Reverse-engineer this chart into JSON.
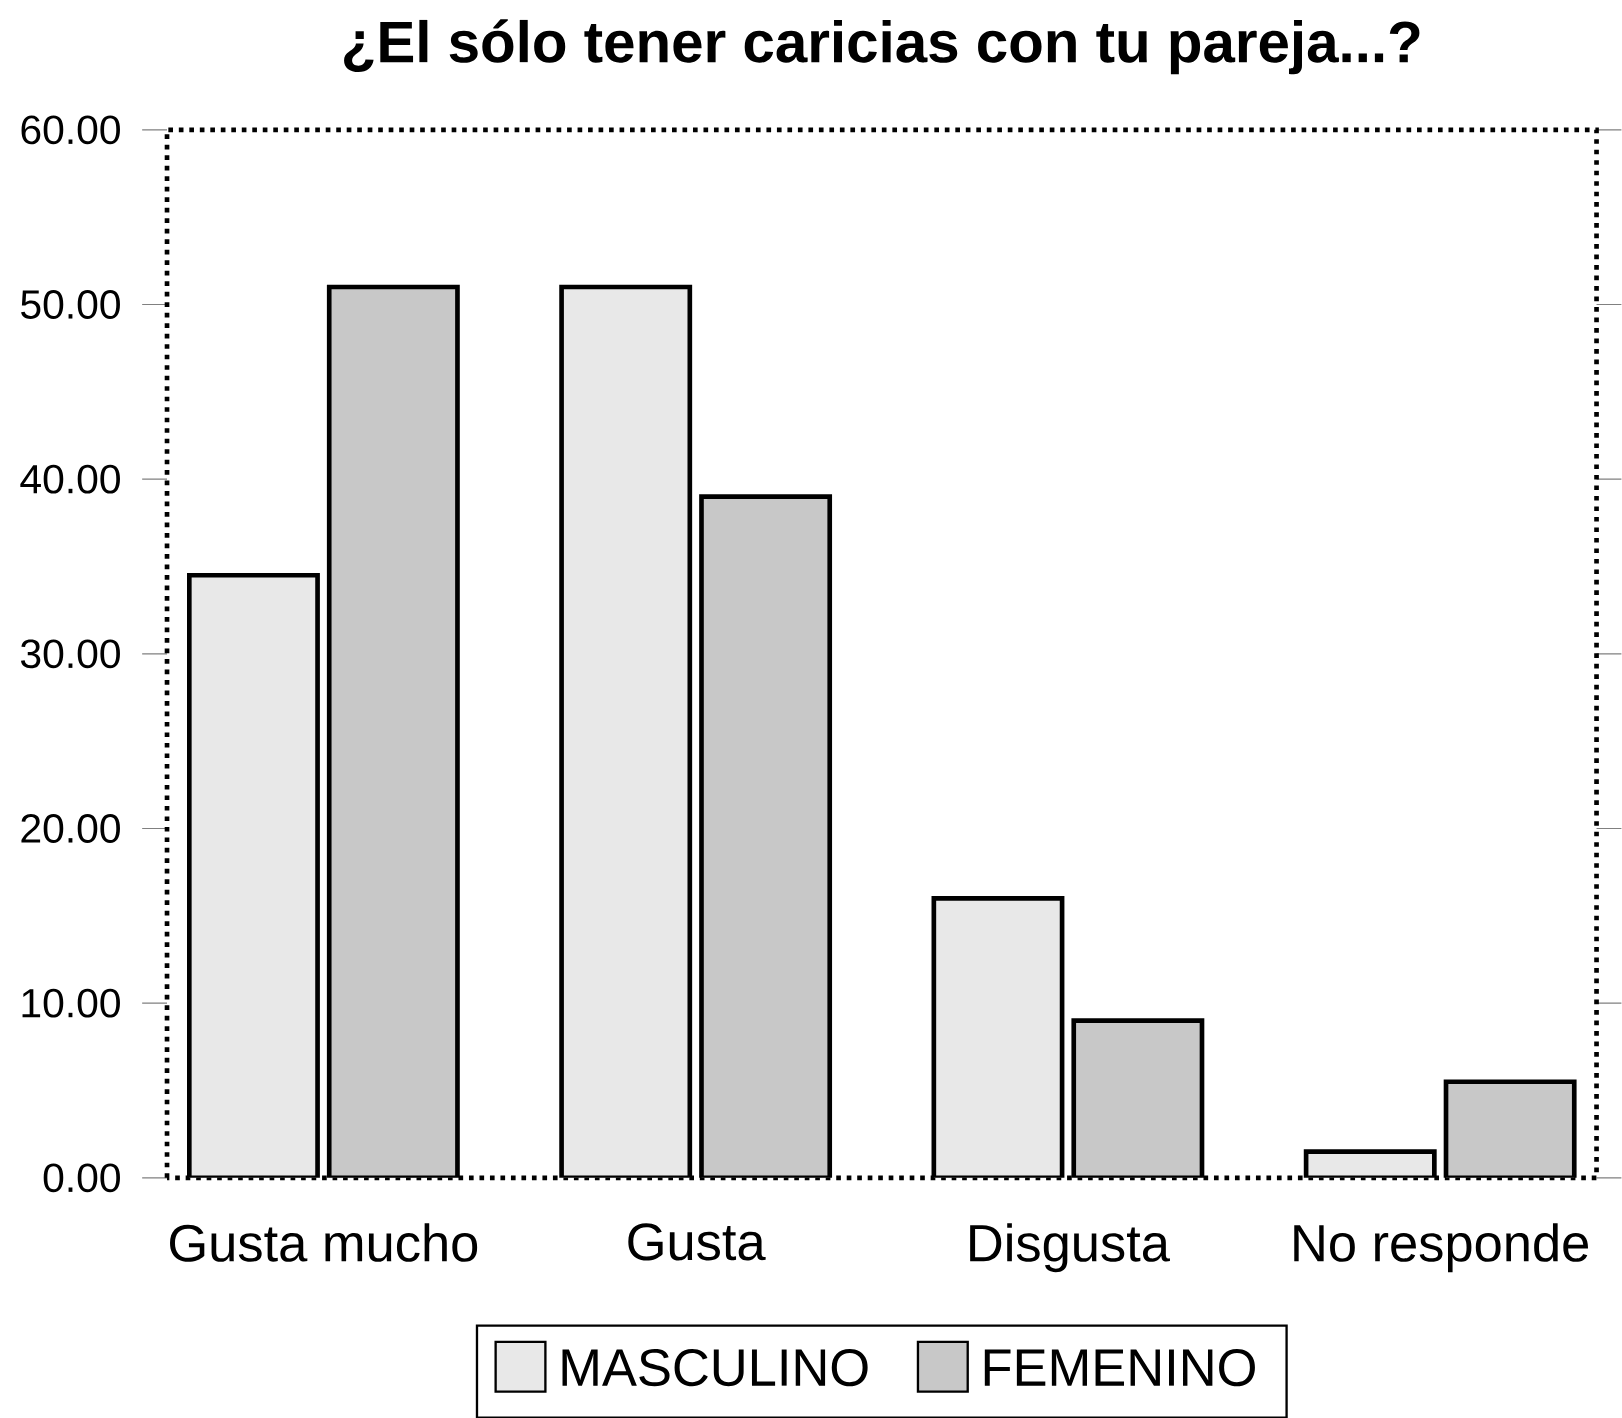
{
  "chart_data": {
    "type": "bar",
    "title": "¿El sólo tener caricias con tu pareja...?",
    "categories": [
      "Gusta mucho",
      "Gusta",
      "Disgusta",
      "No responde"
    ],
    "series": [
      {
        "name": "MASCULINO",
        "color": "#e8e8e8",
        "values": [
          34.5,
          51,
          16,
          1.5
        ]
      },
      {
        "name": "FEMENINO",
        "color": "#c8c8c8",
        "values": [
          51,
          39,
          9,
          5.5
        ]
      }
    ],
    "ylim": [
      0,
      60
    ],
    "yticks": [
      {
        "value": 0,
        "label": "0.00"
      },
      {
        "value": 10,
        "label": "10.00"
      },
      {
        "value": 20,
        "label": "20.00"
      },
      {
        "value": 30,
        "label": "30.00"
      },
      {
        "value": 40,
        "label": "40.00"
      },
      {
        "value": 50,
        "label": "50.00"
      },
      {
        "value": 60,
        "label": "60.00"
      }
    ],
    "grid": false,
    "legend": "bottom"
  }
}
